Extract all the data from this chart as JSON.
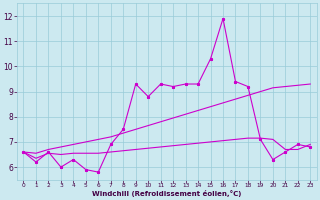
{
  "xlabel": "Windchill (Refroidissement éolien,°C)",
  "xlim": [
    -0.5,
    23.5
  ],
  "ylim": [
    5.5,
    12.5
  ],
  "yticks": [
    6,
    7,
    8,
    9,
    10,
    11,
    12
  ],
  "xticks": [
    0,
    1,
    2,
    3,
    4,
    5,
    6,
    7,
    8,
    9,
    10,
    11,
    12,
    13,
    14,
    15,
    16,
    17,
    18,
    19,
    20,
    21,
    22,
    23
  ],
  "background_color": "#cce9f0",
  "grid_color": "#99ccd9",
  "line_color": "#cc00cc",
  "line1_x": [
    0,
    1,
    2,
    3,
    4,
    5,
    6,
    7,
    8,
    9,
    10,
    11,
    12,
    13,
    14,
    15,
    16,
    17,
    18,
    19,
    20,
    21,
    22,
    23
  ],
  "line1_y": [
    6.6,
    6.2,
    6.6,
    6.0,
    6.3,
    5.9,
    5.8,
    6.9,
    7.5,
    9.3,
    8.8,
    9.3,
    9.2,
    9.3,
    9.3,
    10.3,
    11.9,
    9.4,
    9.2,
    7.1,
    6.3,
    6.6,
    6.9,
    6.8
  ],
  "line2_x": [
    0,
    1,
    2,
    3,
    4,
    5,
    6,
    7,
    8,
    9,
    10,
    11,
    12,
    13,
    14,
    15,
    16,
    17,
    18,
    19,
    20,
    21,
    22,
    23
  ],
  "line2_y": [
    6.6,
    6.55,
    6.7,
    6.8,
    6.9,
    7.0,
    7.1,
    7.2,
    7.35,
    7.5,
    7.65,
    7.8,
    7.95,
    8.1,
    8.25,
    8.4,
    8.55,
    8.7,
    8.85,
    9.0,
    9.15,
    9.2,
    9.25,
    9.3
  ],
  "line3_x": [
    0,
    1,
    2,
    3,
    4,
    5,
    6,
    7,
    8,
    9,
    10,
    11,
    12,
    13,
    14,
    15,
    16,
    17,
    18,
    19,
    20,
    21,
    22,
    23
  ],
  "line3_y": [
    6.6,
    6.35,
    6.55,
    6.5,
    6.55,
    6.55,
    6.55,
    6.6,
    6.65,
    6.7,
    6.75,
    6.8,
    6.85,
    6.9,
    6.95,
    7.0,
    7.05,
    7.1,
    7.15,
    7.15,
    7.1,
    6.7,
    6.7,
    6.9
  ]
}
